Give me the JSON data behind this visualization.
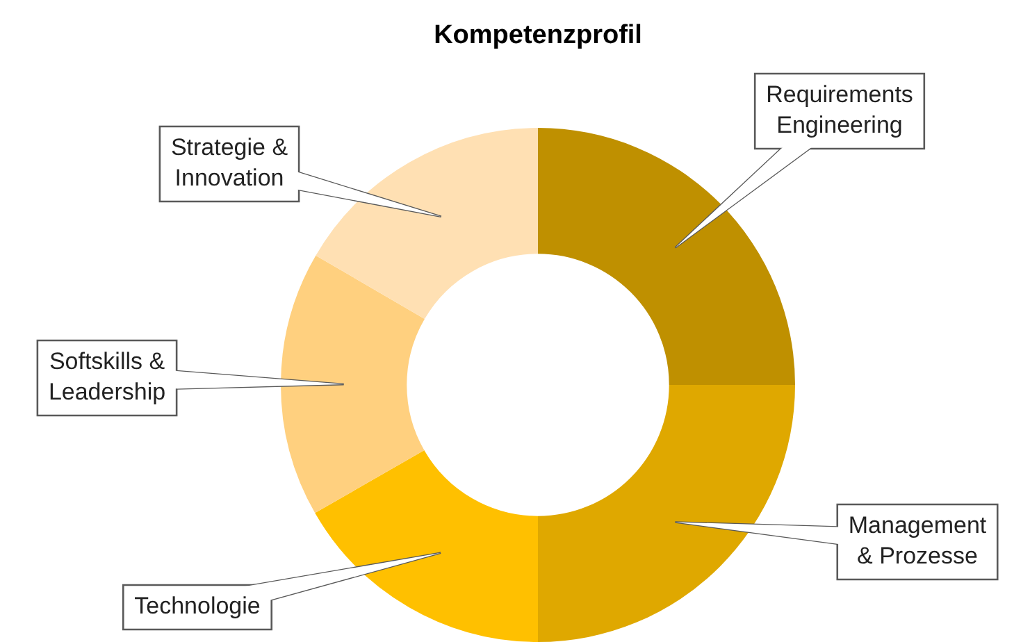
{
  "chart_data": {
    "type": "donut",
    "title": "Kompetenzprofil",
    "categories": [
      "Requirements Engineering",
      "Management & Prozesse",
      "Technologie",
      "Softskills & Leadership",
      "Strategie & Innovation"
    ],
    "values": [
      25,
      25,
      16.7,
      16.7,
      16.6
    ],
    "colors": [
      "#bf9000",
      "#dfa800",
      "#ffc000",
      "#ffd07f",
      "#ffe0b3"
    ],
    "legend": false
  }
}
